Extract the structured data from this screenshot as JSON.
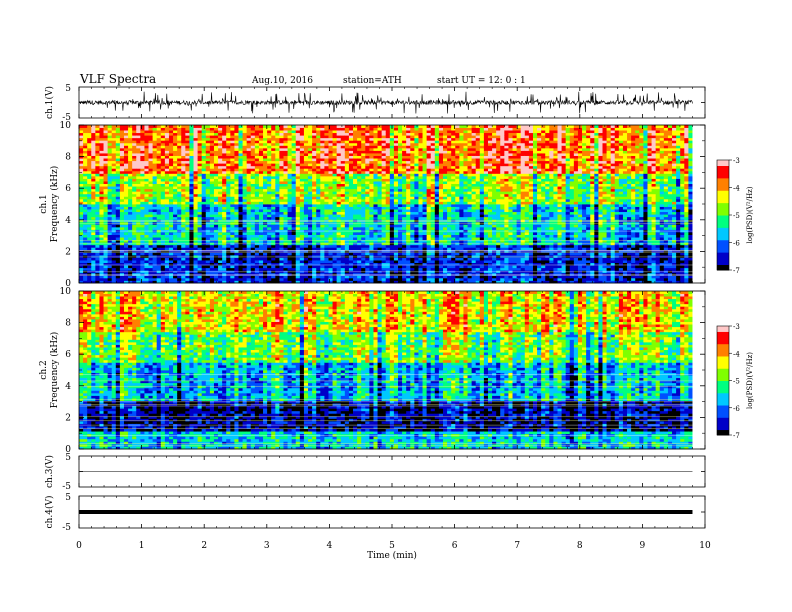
{
  "header": {
    "title": "VLF  Spectra",
    "date": "Aug.10, 2016",
    "station": "station=ATH",
    "start": "start  UT  =   12: 0  : 1"
  },
  "chart_data": [
    {
      "type": "line",
      "panel": "ch1-waveform",
      "ylabel": "ch.1(V)",
      "ylim": [
        -5,
        5
      ],
      "yticks": [
        "5",
        "-5"
      ],
      "xlim": [
        0,
        10
      ],
      "series": [
        {
          "kind": "noisy-waveform",
          "baseline": 0,
          "typical_amplitude": 1.2,
          "max_spike": 3.8,
          "x_end": 9.8
        }
      ],
      "color": "#000000"
    },
    {
      "type": "heatmap",
      "panel": "ch1-spectrogram",
      "ylabel_top": "ch.1",
      "ylabel": "Frequency  (kHz)",
      "ylim": [
        0,
        10
      ],
      "yticks": [
        "0",
        "2",
        "4",
        "6",
        "8",
        "10"
      ],
      "xlim": [
        0,
        9.8
      ],
      "description_bands": [
        {
          "from_khz": 0,
          "to_khz": 2.5,
          "dominant_log_psd": -6.3
        },
        {
          "from_khz": 2.5,
          "to_khz": 5,
          "dominant_log_psd": -5.4
        },
        {
          "from_khz": 5,
          "to_khz": 7,
          "dominant_log_psd": -4.6
        },
        {
          "from_khz": 7,
          "to_khz": 10,
          "dominant_log_psd": -3.6
        }
      ],
      "colorbar": {
        "label": "log(PSD)(V²/Hz)",
        "ticks": [
          "-3",
          "-4",
          "-5",
          "-6",
          "-7"
        ],
        "range": [
          -7,
          -3
        ]
      }
    },
    {
      "type": "heatmap",
      "panel": "ch2-spectrogram",
      "ylabel_top": "ch.2",
      "ylabel": "Frequency  (kHz)",
      "ylim": [
        0,
        10
      ],
      "yticks": [
        "0",
        "2",
        "4",
        "6",
        "8",
        "10"
      ],
      "xlim": [
        0,
        9.8
      ],
      "description_bands": [
        {
          "from_khz": 0,
          "to_khz": 1.2,
          "dominant_log_psd": -5.5
        },
        {
          "from_khz": 1.2,
          "to_khz": 3,
          "dominant_log_psd": -6.6
        },
        {
          "from_khz": 3,
          "to_khz": 5.5,
          "dominant_log_psd": -5.6
        },
        {
          "from_khz": 5.5,
          "to_khz": 7.5,
          "dominant_log_psd": -4.8
        },
        {
          "from_khz": 7.5,
          "to_khz": 10,
          "dominant_log_psd": -4.2
        }
      ],
      "colorbar": {
        "label": "log(PSD)(V²/Hz)",
        "ticks": [
          "-3",
          "-4",
          "-5",
          "-6",
          "-7"
        ],
        "range": [
          -7,
          -3
        ]
      }
    },
    {
      "type": "line",
      "panel": "ch3-waveform",
      "ylabel": "ch.3(V)",
      "ylim": [
        -5,
        5
      ],
      "yticks": [
        "5",
        "-5"
      ],
      "series": [
        {
          "kind": "flat",
          "value": 0,
          "x_end": 9.8
        }
      ]
    },
    {
      "type": "line",
      "panel": "ch4-waveform",
      "ylabel": "ch.4(V)",
      "ylim": [
        -5,
        5
      ],
      "yticks": [
        "5",
        "-5"
      ],
      "series": [
        {
          "kind": "thick-flat",
          "value": 0,
          "x_end": 9.8
        }
      ]
    }
  ],
  "xaxis": {
    "label": "Time  (min)",
    "ticks": [
      "0",
      "1",
      "2",
      "3",
      "4",
      "5",
      "6",
      "7",
      "8",
      "9",
      "10"
    ],
    "range": [
      0,
      10
    ]
  },
  "colors": {
    "colormap": [
      "#000000",
      "#0000c8",
      "#0050ff",
      "#00c8ff",
      "#00ff80",
      "#80ff00",
      "#ffff00",
      "#ff8000",
      "#ff0000",
      "#ffc8c8"
    ]
  }
}
